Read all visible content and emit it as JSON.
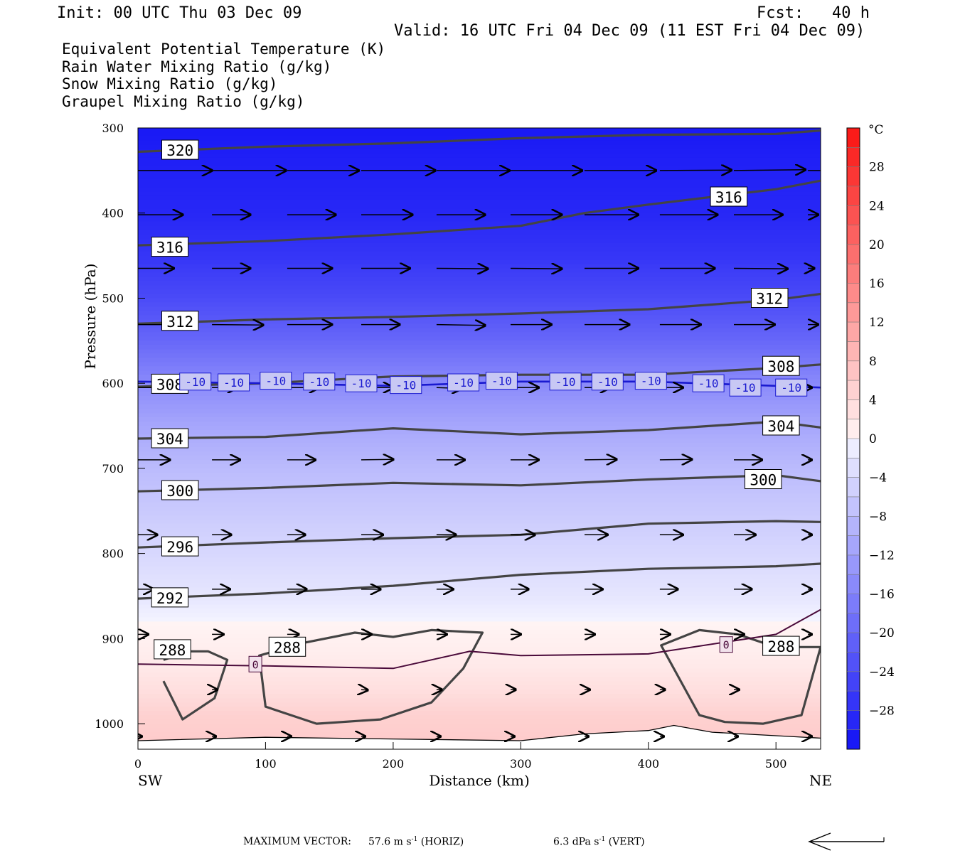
{
  "header": {
    "init": "Init: 00 UTC Thu 03 Dec 09",
    "fcst": "Fcst:   40 h",
    "valid": "Valid: 16 UTC Fri 04 Dec 09 (11 EST Fri 04 Dec 09)"
  },
  "legend": [
    {
      "label": "Equivalent Potential Temperature (K)",
      "color": "#555555"
    },
    {
      "label": "Rain Water Mixing Ratio (g/kg)",
      "color": "#1a7a1a"
    },
    {
      "label": "Snow Mixing Ratio (g/kg)",
      "color": "#f08c50"
    },
    {
      "label": "Graupel Mixing Ratio (g/kg)",
      "color": "#ee82ee"
    }
  ],
  "chart_data": {
    "type": "heatmap",
    "title": "Equivalent Potential Temperature (K)",
    "xlabel": "Distance (km)",
    "ylabel": "Pressure (hPa)",
    "x_ticks": [
      0,
      100,
      200,
      300,
      400,
      500
    ],
    "xlim": [
      0,
      535
    ],
    "y_ticks": [
      300,
      400,
      500,
      600,
      700,
      800,
      900,
      1000
    ],
    "ylim": [
      300,
      1030
    ],
    "x_end_labels": {
      "left": "SW",
      "right": "NE"
    },
    "colorbar": {
      "unit": "°C",
      "ticks": [
        28,
        24,
        20,
        16,
        12,
        8,
        4,
        0,
        -4,
        -8,
        -12,
        -16,
        -20,
        -24,
        -28
      ],
      "range": [
        -32,
        32
      ]
    },
    "temperature_field": {
      "levels": [
        300,
        340,
        400,
        450,
        500,
        550,
        600,
        650,
        700,
        750,
        800,
        850,
        880,
        920,
        960,
        990,
        1030
      ],
      "values": [
        -31,
        -30,
        -29,
        -27,
        -24,
        -20,
        -15,
        -11,
        -8,
        -6,
        -4,
        -2,
        0,
        1,
        3,
        5,
        6
      ]
    },
    "theta_e_contours": [
      {
        "value": 320,
        "x": [
          0,
          100,
          200,
          300,
          400,
          500,
          535
        ],
        "p": [
          328,
          322,
          318,
          312,
          308,
          307,
          303
        ]
      },
      {
        "value": 316,
        "x": [
          0,
          100,
          200,
          300,
          350,
          400,
          500,
          535
        ],
        "p": [
          438,
          433,
          425,
          415,
          400,
          390,
          372,
          362
        ]
      },
      {
        "value": 312,
        "x": [
          0,
          100,
          200,
          300,
          400,
          500,
          535
        ],
        "p": [
          530,
          525,
          522,
          518,
          513,
          502,
          495
        ]
      },
      {
        "value": 308,
        "x": [
          0,
          100,
          200,
          300,
          400,
          500,
          535
        ],
        "p": [
          604,
          600,
          592,
          590,
          590,
          582,
          578
        ]
      },
      {
        "value": 304,
        "x": [
          0,
          100,
          200,
          300,
          400,
          500,
          535
        ],
        "p": [
          665,
          663,
          653,
          660,
          655,
          645,
          652
        ]
      },
      {
        "value": 300,
        "x": [
          0,
          100,
          200,
          300,
          400,
          500,
          535
        ],
        "p": [
          727,
          723,
          717,
          720,
          713,
          708,
          715
        ]
      },
      {
        "value": 296,
        "x": [
          0,
          100,
          200,
          300,
          400,
          500,
          535
        ],
        "p": [
          793,
          787,
          782,
          778,
          765,
          762,
          763
        ]
      },
      {
        "value": 292,
        "x": [
          0,
          100,
          200,
          300,
          400,
          500,
          535
        ],
        "p": [
          853,
          847,
          838,
          825,
          818,
          815,
          812
        ]
      },
      {
        "value": 288,
        "x": [
          20,
          40,
          55,
          70,
          60,
          35,
          20
        ],
        "p": [
          925,
          915,
          915,
          925,
          970,
          995,
          950
        ]
      },
      {
        "value": 288,
        "x": [
          95,
          130,
          170,
          200,
          230,
          270,
          255,
          230,
          190,
          140,
          100,
          95
        ],
        "p": [
          920,
          905,
          893,
          898,
          890,
          893,
          935,
          975,
          995,
          1000,
          980,
          920
        ]
      },
      {
        "value": 288,
        "x": [
          410,
          440,
          470,
          500,
          535,
          520,
          490,
          460,
          440,
          410
        ],
        "p": [
          908,
          890,
          895,
          910,
          910,
          990,
          1000,
          998,
          990,
          908
        ]
      }
    ],
    "isotherm_minus10": {
      "value": -10,
      "x": [
        0,
        100,
        200,
        300,
        400,
        500,
        535
      ],
      "p": [
        598,
        600,
        603,
        598,
        598,
        603,
        605
      ]
    },
    "isotherm_zero": {
      "value": 0,
      "x": [
        0,
        100,
        200,
        260,
        300,
        400,
        500,
        535
      ],
      "p": [
        930,
        932,
        935,
        915,
        920,
        918,
        895,
        866
      ]
    },
    "ground_pressure": {
      "x": [
        0,
        100,
        200,
        300,
        350,
        400,
        420,
        450,
        535
      ],
      "p": [
        1020,
        1016,
        1018,
        1020,
        1012,
        1008,
        1002,
        1010,
        1017
      ]
    },
    "theta_e_labels": [
      {
        "text": "320",
        "x": 33,
        "p": 326
      },
      {
        "text": "316",
        "x": 463,
        "p": 381
      },
      {
        "text": "316",
        "x": 25,
        "p": 440
      },
      {
        "text": "312",
        "x": 495,
        "p": 500
      },
      {
        "text": "312",
        "x": 33,
        "p": 527
      },
      {
        "text": "308",
        "x": 504,
        "p": 580
      },
      {
        "text": "308",
        "x": 25,
        "p": 601
      },
      {
        "text": "304",
        "x": 504,
        "p": 650
      },
      {
        "text": "304",
        "x": 25,
        "p": 665
      },
      {
        "text": "300",
        "x": 490,
        "p": 713
      },
      {
        "text": "300",
        "x": 33,
        "p": 726
      },
      {
        "text": "296",
        "x": 33,
        "p": 792
      },
      {
        "text": "292",
        "x": 25,
        "p": 852
      },
      {
        "text": "288",
        "x": 27,
        "p": 913
      },
      {
        "text": "288",
        "x": 117,
        "p": 910
      },
      {
        "text": "288",
        "x": 504,
        "p": 909
      }
    ],
    "isotherm_labels": [
      {
        "text": "-10",
        "x": 45,
        "p": 598
      },
      {
        "text": "-10",
        "x": 75,
        "p": 599
      },
      {
        "text": "-10",
        "x": 108,
        "p": 597
      },
      {
        "text": "-10",
        "x": 142,
        "p": 598
      },
      {
        "text": "-10",
        "x": 175,
        "p": 600
      },
      {
        "text": "-10",
        "x": 210,
        "p": 602
      },
      {
        "text": "-10",
        "x": 255,
        "p": 599
      },
      {
        "text": "-10",
        "x": 285,
        "p": 597
      },
      {
        "text": "-10",
        "x": 335,
        "p": 598
      },
      {
        "text": "-10",
        "x": 368,
        "p": 598
      },
      {
        "text": "-10",
        "x": 402,
        "p": 597
      },
      {
        "text": "-10",
        "x": 447,
        "p": 600
      },
      {
        "text": "-10",
        "x": 476,
        "p": 605
      },
      {
        "text": "-10",
        "x": 512,
        "p": 605
      },
      {
        "text": "0",
        "x": 92,
        "p": 930
      },
      {
        "text": "0",
        "x": 461,
        "p": 907
      }
    ],
    "wind_vectors": [
      {
        "p": 350,
        "x": [
          0,
          58,
          117,
          175,
          234,
          292,
          350,
          409,
          467,
          525
        ],
        "len_km": [
          58,
          58,
          56,
          58,
          57,
          56,
          56,
          56,
          56,
          50
        ],
        "dy": [
          0,
          0,
          0,
          0,
          0,
          0,
          0,
          -0.5,
          -1,
          0
        ]
      },
      {
        "p": 402,
        "x": [
          0,
          58,
          117,
          175,
          234,
          292,
          350,
          409,
          467,
          525
        ],
        "len_km": [
          35,
          30,
          38,
          40,
          38,
          40,
          42,
          45,
          38,
          8
        ],
        "dy": [
          0,
          0,
          0,
          0,
          0,
          0,
          0,
          0,
          0,
          0
        ]
      },
      {
        "p": 465,
        "x": [
          0,
          58,
          117,
          175,
          234,
          292,
          350,
          409,
          467,
          525
        ],
        "len_km": [
          28,
          30,
          35,
          38,
          40,
          40,
          42,
          43,
          42,
          5
        ],
        "dy": [
          0,
          0,
          0,
          0,
          0.5,
          0.5,
          0,
          0,
          0.5,
          0
        ]
      },
      {
        "p": 531,
        "x": [
          0,
          58,
          117,
          175,
          234,
          292,
          350,
          409,
          467,
          525
        ],
        "len_km": [
          37,
          40,
          35,
          30,
          38,
          32,
          35,
          32,
          32,
          8
        ],
        "dy": [
          0,
          0.5,
          0,
          0,
          1,
          0,
          0,
          0,
          0,
          0
        ]
      },
      {
        "p": 605,
        "x": [
          0,
          58,
          117,
          175,
          234,
          292,
          350,
          409,
          467,
          525
        ],
        "len_km": [
          25,
          20,
          25,
          25,
          20,
          22,
          20,
          18,
          15,
          3
        ],
        "dy": [
          0,
          0,
          0,
          0,
          1,
          0,
          0,
          0,
          0,
          0
        ]
      },
      {
        "p": 690,
        "x": [
          0,
          58,
          117,
          175,
          234,
          292,
          350,
          409,
          467,
          525
        ],
        "len_km": [
          25,
          22,
          22,
          25,
          22,
          22,
          25,
          25,
          22,
          3
        ],
        "dy": [
          0,
          0,
          0,
          -0.5,
          0,
          0,
          -0.5,
          -0.5,
          0,
          0
        ]
      },
      {
        "p": 778,
        "x": [
          0,
          58,
          117,
          175,
          234,
          292,
          350,
          409,
          467,
          525
        ],
        "len_km": [
          15,
          15,
          14,
          17,
          15,
          19,
          18,
          18,
          17,
          3
        ],
        "dy": [
          0,
          0,
          0,
          0,
          0,
          0,
          0,
          0,
          0,
          0
        ]
      },
      {
        "p": 842,
        "x": [
          0,
          58,
          117,
          175,
          234,
          292,
          350,
          409,
          467,
          525
        ],
        "len_km": [
          12,
          14,
          15,
          15,
          13,
          14,
          14,
          14,
          14,
          3
        ],
        "dy": [
          0,
          0,
          0,
          0,
          0,
          0,
          0,
          0,
          0,
          0
        ]
      },
      {
        "p": 895,
        "x": [
          0,
          58,
          117,
          175,
          234,
          292,
          350,
          409,
          467,
          525
        ],
        "len_km": [
          8,
          9,
          9,
          8,
          8,
          8,
          8,
          8,
          8,
          3
        ],
        "dy": [
          0,
          0,
          0,
          0,
          0,
          0,
          0,
          0,
          0,
          0
        ]
      },
      {
        "p": 960,
        "x": [
          58,
          175,
          234,
          292,
          350,
          409,
          467
        ],
        "len_km": [
          4,
          5,
          4,
          4,
          4,
          4,
          4
        ],
        "dy": [
          0,
          0.5,
          0,
          0,
          0,
          0,
          0
        ]
      },
      {
        "p": 1015,
        "x": [
          0,
          58,
          117,
          175,
          234,
          292,
          350,
          409,
          467,
          525
        ],
        "len_km": [
          3,
          3,
          3,
          3,
          3,
          3,
          3,
          3,
          3,
          3
        ],
        "dy": [
          0,
          0,
          0,
          0,
          0,
          0,
          0,
          0,
          0,
          0
        ]
      }
    ]
  },
  "footer": {
    "max_vector": "MAXIMUM VECTOR:",
    "horiz_value": "57.6 m s",
    "horiz_exp": "-1",
    "horiz_tag": " (HORIZ)",
    "vert_value": "6.3 dPa s",
    "vert_exp": "-1",
    "vert_tag": " (VERT)"
  }
}
